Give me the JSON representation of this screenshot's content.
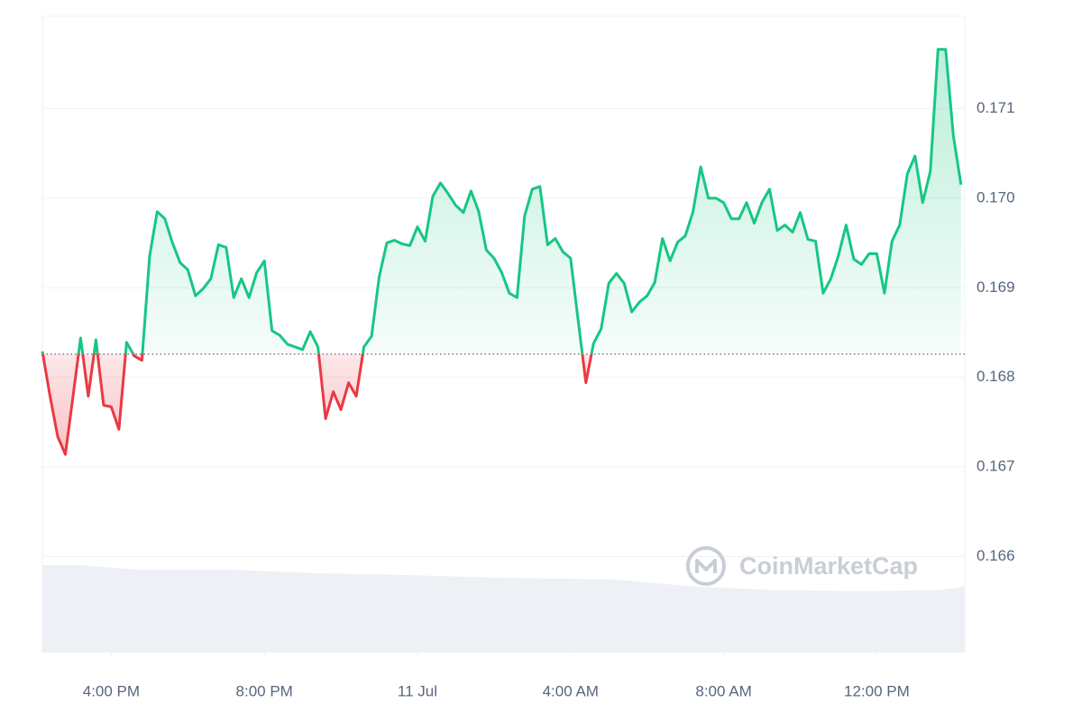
{
  "chart_data": {
    "type": "line",
    "x": [
      14.2,
      14.4,
      14.6,
      14.8,
      15.0,
      15.2,
      15.4,
      15.6,
      15.8,
      16.0,
      16.2,
      16.4,
      16.6,
      16.8,
      17.0,
      17.2,
      17.4,
      17.6,
      17.8,
      18.0,
      18.2,
      18.4,
      18.6,
      18.8,
      19.0,
      19.2,
      19.4,
      19.6,
      19.8,
      20.0,
      20.2,
      20.4,
      20.6,
      20.8,
      21.0,
      21.2,
      21.4,
      21.6,
      21.8,
      22.0,
      22.2,
      22.4,
      22.6,
      22.8,
      23.0,
      23.2,
      23.4,
      23.6,
      23.8,
      24.0,
      24.2,
      24.4,
      24.6,
      24.8,
      25.0,
      25.2,
      25.4,
      25.6,
      25.8,
      26.0,
      26.2,
      26.4,
      26.6,
      26.8,
      27.0,
      27.2,
      27.4,
      27.6,
      27.8,
      28.0,
      28.2,
      28.4,
      28.6,
      28.8,
      29.0,
      29.2,
      29.4,
      29.6,
      29.8,
      30.0,
      30.2,
      30.4,
      30.6,
      30.8,
      31.0,
      31.2,
      31.4,
      31.6,
      31.8,
      32.0,
      32.2,
      32.4,
      32.6,
      32.8,
      33.0,
      33.2,
      33.4,
      33.6,
      33.8,
      34.0,
      34.2,
      34.4,
      34.6,
      34.8,
      35.0,
      35.2,
      35.4,
      35.6,
      35.8,
      36.0,
      36.2,
      36.4,
      36.6,
      36.8,
      37.0,
      37.2,
      37.4,
      37.6,
      37.8,
      38.0,
      38.2
    ],
    "series": [
      {
        "values": [
          0.16829,
          0.16779,
          0.16734,
          0.16714,
          0.16779,
          0.16844,
          0.16779,
          0.16842,
          0.16769,
          0.16767,
          0.16742,
          0.16839,
          0.16824,
          0.16819,
          0.16935,
          0.16985,
          0.16977,
          0.1695,
          0.16928,
          0.1692,
          0.16891,
          0.16899,
          0.1691,
          0.16948,
          0.16945,
          0.16889,
          0.1691,
          0.16889,
          0.16917,
          0.1693,
          0.16852,
          0.16847,
          0.16837,
          0.16834,
          0.16831,
          0.16851,
          0.16834,
          0.16754,
          0.16784,
          0.16764,
          0.16794,
          0.16779,
          0.16834,
          0.16846,
          0.16912,
          0.1695,
          0.16953,
          0.16949,
          0.16947,
          0.16968,
          0.16952,
          0.17002,
          0.17017,
          0.17005,
          0.16992,
          0.16984,
          0.17008,
          0.16985,
          0.16942,
          0.16933,
          0.16917,
          0.16894,
          0.16889,
          0.1698,
          0.1701,
          0.17013,
          0.16948,
          0.16955,
          0.1694,
          0.16933,
          0.16863,
          0.16794,
          0.16838,
          0.16854,
          0.16905,
          0.16916,
          0.16905,
          0.16873,
          0.16884,
          0.16891,
          0.16906,
          0.16955,
          0.1693,
          0.16951,
          0.16958,
          0.16985,
          0.17035,
          0.17,
          0.17,
          0.16995,
          0.16977,
          0.16977,
          0.16995,
          0.16972,
          0.16995,
          0.1701,
          0.16964,
          0.1697,
          0.16962,
          0.16984,
          0.16954,
          0.16952,
          0.16894,
          0.1691,
          0.16936,
          0.1697,
          0.16932,
          0.16926,
          0.16938,
          0.16938,
          0.16894,
          0.16952,
          0.1697,
          0.17027,
          0.17047,
          0.16995,
          0.1703,
          0.17166,
          0.17166,
          0.1707,
          0.17015
        ]
      }
    ],
    "baseline": 0.16826,
    "up_color": "#16c784",
    "down_color": "#ea3943",
    "xlim": [
      14.2,
      38.3
    ],
    "xticks": [
      {
        "value": 16,
        "label": "4:00 PM"
      },
      {
        "value": 20,
        "label": "8:00 PM"
      },
      {
        "value": 24,
        "label": "11 Jul"
      },
      {
        "value": 28,
        "label": "4:00 AM"
      },
      {
        "value": 32,
        "label": "8:00 AM"
      },
      {
        "value": 36,
        "label": "12:00 PM"
      }
    ],
    "ylim": [
      0.16493,
      0.17203
    ],
    "yticks": [
      0.166,
      0.167,
      0.168,
      0.169,
      {
        "value": 0.17,
        "label": "0.170"
      },
      0.171
    ],
    "grid": true,
    "watermark": "CoinMarketCap"
  }
}
